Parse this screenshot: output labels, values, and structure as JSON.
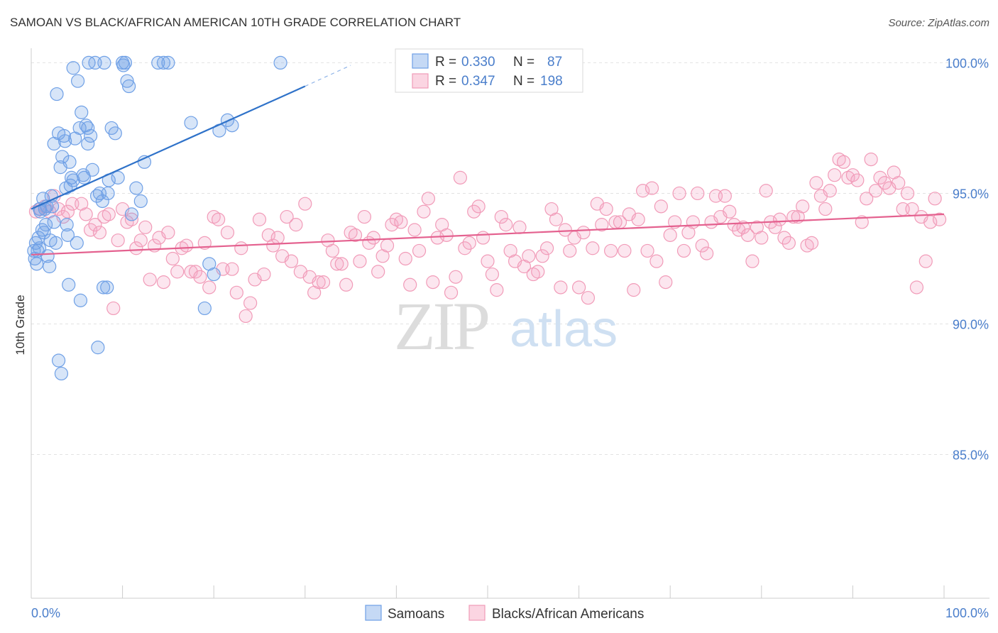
{
  "title": "SAMOAN VS BLACK/AFRICAN AMERICAN 10TH GRADE CORRELATION CHART",
  "source": "Source: ZipAtlas.com",
  "watermark": {
    "zip": "ZIP",
    "atlas": "atlas"
  },
  "legend": {
    "rows": [
      {
        "r_label": "R =",
        "r_value": "0.330",
        "n_label": "N =",
        "n_value": "87"
      },
      {
        "r_label": "R =",
        "r_value": "0.347",
        "n_label": "N =",
        "n_value": "198"
      }
    ]
  },
  "bottom_legend": [
    "Samoans",
    "Blacks/African Americans"
  ],
  "chart_data": {
    "type": "scatter",
    "title": "SAMOAN VS BLACK/AFRICAN AMERICAN 10TH GRADE CORRELATION CHART",
    "xlabel": "",
    "ylabel": "10th Grade",
    "x_tick_labels": [
      "0.0%",
      "100.0%"
    ],
    "y_tick_labels": [
      "100.0%",
      "95.0%",
      "90.0%",
      "85.0%"
    ],
    "y_ticks": [
      100,
      95,
      90,
      85
    ],
    "xlim": [
      0,
      100
    ],
    "ylim": [
      79.5,
      100.5
    ],
    "grid": true,
    "legend_position": "top-center",
    "colors": {
      "samoans": "#6fa0e6",
      "blacks": "#f19bb8",
      "samoans_line": "#2f72c9",
      "blacks_line": "#e4618f",
      "axis_text": "#4a7ecb"
    },
    "series": [
      {
        "name": "Samoans",
        "r": 0.33,
        "n": 87,
        "trend": {
          "x0": 0,
          "y0": 94.4,
          "x1": 30,
          "y1": 99.1,
          "dash_to_x": 35,
          "dash_to_y": 99.9
        },
        "points": [
          [
            0.3,
            92.8
          ],
          [
            0.4,
            92.5
          ],
          [
            0.5,
            93.1
          ],
          [
            0.6,
            92.3
          ],
          [
            0.7,
            92.8
          ],
          [
            0.8,
            93.3
          ],
          [
            0.9,
            92.9
          ],
          [
            1.0,
            94.3
          ],
          [
            1.2,
            93.6
          ],
          [
            1.3,
            94.8
          ],
          [
            1.5,
            94.4
          ],
          [
            1.6,
            93.8
          ],
          [
            1.8,
            92.6
          ],
          [
            2.0,
            92.2
          ],
          [
            2.1,
            93.2
          ],
          [
            2.3,
            94.5
          ],
          [
            2.5,
            93.9
          ],
          [
            2.8,
            98.8
          ],
          [
            3.0,
            97.3
          ],
          [
            3.2,
            96.0
          ],
          [
            3.4,
            96.4
          ],
          [
            3.6,
            97.2
          ],
          [
            3.8,
            95.2
          ],
          [
            4.0,
            93.4
          ],
          [
            4.2,
            96.2
          ],
          [
            4.4,
            95.6
          ],
          [
            4.6,
            95.5
          ],
          [
            4.8,
            97.1
          ],
          [
            5.0,
            93.1
          ],
          [
            4.6,
            99.8
          ],
          [
            5.1,
            99.3
          ],
          [
            5.3,
            97.5
          ],
          [
            5.5,
            98.1
          ],
          [
            5.7,
            95.7
          ],
          [
            6.0,
            97.6
          ],
          [
            6.2,
            96.9
          ],
          [
            6.3,
            100.0
          ],
          [
            6.5,
            97.2
          ],
          [
            6.7,
            95.9
          ],
          [
            7.0,
            100.0
          ],
          [
            7.2,
            94.9
          ],
          [
            7.5,
            95.0
          ],
          [
            7.8,
            94.7
          ],
          [
            8.0,
            100.0
          ],
          [
            8.3,
            91.4
          ],
          [
            8.5,
            95.5
          ],
          [
            8.8,
            97.5
          ],
          [
            9.2,
            97.3
          ],
          [
            9.5,
            95.6
          ],
          [
            10.0,
            100.0
          ],
          [
            10.1,
            99.9
          ],
          [
            10.3,
            100.0
          ],
          [
            10.5,
            99.3
          ],
          [
            10.7,
            99.1
          ],
          [
            11.0,
            94.2
          ],
          [
            11.5,
            95.2
          ],
          [
            12.0,
            94.7
          ],
          [
            12.4,
            96.2
          ],
          [
            13.9,
            100.0
          ],
          [
            14.5,
            100.0
          ],
          [
            15.0,
            100.0
          ],
          [
            17.5,
            97.7
          ],
          [
            19.0,
            90.6
          ],
          [
            19.5,
            92.3
          ],
          [
            20.0,
            91.9
          ],
          [
            20.6,
            97.4
          ],
          [
            21.5,
            97.8
          ],
          [
            22.0,
            97.6
          ],
          [
            27.3,
            100.0
          ],
          [
            3.0,
            88.6
          ],
          [
            3.3,
            88.1
          ],
          [
            7.3,
            89.1
          ],
          [
            4.1,
            91.5
          ],
          [
            5.4,
            90.9
          ],
          [
            7.9,
            91.4
          ],
          [
            1.4,
            93.5
          ],
          [
            2.7,
            93.1
          ],
          [
            3.9,
            93.8
          ],
          [
            2.2,
            94.9
          ],
          [
            1.7,
            94.5
          ],
          [
            0.9,
            94.4
          ],
          [
            5.8,
            95.6
          ],
          [
            3.7,
            97.0
          ],
          [
            2.5,
            96.9
          ],
          [
            6.2,
            97.5
          ],
          [
            8.4,
            95.0
          ],
          [
            4.3,
            95.3
          ]
        ]
      },
      {
        "name": "Blacks/African Americans",
        "r": 0.347,
        "n": 198,
        "trend": {
          "x0": 0,
          "y0": 92.65,
          "x1": 100,
          "y1": 94.2
        },
        "points": [
          [
            0.5,
            94.3
          ],
          [
            1.0,
            94.4
          ],
          [
            1.5,
            94.5
          ],
          [
            2.0,
            94.3
          ],
          [
            2.5,
            94.9
          ],
          [
            3.0,
            94.4
          ],
          [
            3.5,
            94.1
          ],
          [
            4.0,
            94.3
          ],
          [
            4.5,
            94.6
          ],
          [
            5.5,
            94.6
          ],
          [
            6.0,
            94.2
          ],
          [
            6.5,
            93.6
          ],
          [
            7.0,
            93.8
          ],
          [
            7.5,
            93.5
          ],
          [
            8.0,
            94.1
          ],
          [
            8.5,
            94.2
          ],
          [
            9.0,
            90.6
          ],
          [
            9.5,
            93.2
          ],
          [
            10.0,
            94.4
          ],
          [
            10.5,
            93.9
          ],
          [
            11.0,
            94.0
          ],
          [
            11.5,
            92.9
          ],
          [
            12.0,
            93.2
          ],
          [
            12.5,
            93.7
          ],
          [
            13.0,
            91.7
          ],
          [
            13.5,
            93.0
          ],
          [
            14.0,
            93.3
          ],
          [
            14.5,
            91.6
          ],
          [
            15.0,
            93.5
          ],
          [
            15.5,
            92.5
          ],
          [
            16.0,
            92.0
          ],
          [
            16.5,
            92.9
          ],
          [
            17.0,
            93.0
          ],
          [
            17.5,
            92.0
          ],
          [
            18.0,
            92.0
          ],
          [
            18.5,
            91.8
          ],
          [
            19.0,
            93.1
          ],
          [
            19.5,
            91.4
          ],
          [
            20.0,
            94.1
          ],
          [
            20.5,
            94.0
          ],
          [
            21.0,
            92.1
          ],
          [
            21.5,
            93.5
          ],
          [
            22.0,
            92.1
          ],
          [
            22.5,
            91.2
          ],
          [
            23.0,
            92.9
          ],
          [
            23.5,
            90.3
          ],
          [
            24.0,
            90.8
          ],
          [
            24.5,
            91.7
          ],
          [
            25.0,
            94.0
          ],
          [
            25.5,
            91.9
          ],
          [
            26.0,
            93.4
          ],
          [
            26.5,
            93.0
          ],
          [
            27.0,
            93.3
          ],
          [
            27.5,
            92.6
          ],
          [
            28.0,
            94.1
          ],
          [
            28.5,
            92.4
          ],
          [
            29.0,
            93.8
          ],
          [
            29.5,
            92.0
          ],
          [
            30.0,
            94.6
          ],
          [
            30.5,
            91.8
          ],
          [
            31.0,
            91.2
          ],
          [
            31.5,
            91.6
          ],
          [
            32.0,
            91.6
          ],
          [
            32.5,
            93.2
          ],
          [
            33.0,
            92.8
          ],
          [
            33.5,
            92.3
          ],
          [
            34.0,
            92.3
          ],
          [
            34.5,
            91.5
          ],
          [
            35.0,
            93.5
          ],
          [
            35.5,
            93.4
          ],
          [
            36.0,
            92.4
          ],
          [
            36.5,
            94.1
          ],
          [
            37.0,
            93.1
          ],
          [
            37.5,
            93.3
          ],
          [
            38.0,
            92.0
          ],
          [
            38.5,
            92.6
          ],
          [
            39.0,
            93.0
          ],
          [
            39.5,
            93.8
          ],
          [
            40.0,
            94.0
          ],
          [
            40.5,
            93.9
          ],
          [
            41.0,
            92.5
          ],
          [
            41.5,
            91.5
          ],
          [
            42.0,
            93.6
          ],
          [
            42.5,
            92.8
          ],
          [
            43.0,
            94.3
          ],
          [
            43.5,
            94.8
          ],
          [
            44.0,
            91.6
          ],
          [
            44.5,
            93.3
          ],
          [
            45.0,
            93.8
          ],
          [
            45.5,
            93.4
          ],
          [
            46.0,
            91.2
          ],
          [
            46.5,
            91.8
          ],
          [
            47.0,
            95.6
          ],
          [
            47.5,
            92.9
          ],
          [
            48.0,
            93.1
          ],
          [
            48.5,
            94.3
          ],
          [
            49.0,
            94.5
          ],
          [
            49.5,
            93.3
          ],
          [
            50.0,
            92.4
          ],
          [
            50.5,
            91.9
          ],
          [
            51.0,
            91.3
          ],
          [
            51.5,
            94.1
          ],
          [
            52.0,
            93.8
          ],
          [
            52.5,
            92.8
          ],
          [
            53.0,
            92.4
          ],
          [
            53.5,
            93.7
          ],
          [
            54.0,
            92.2
          ],
          [
            54.5,
            92.6
          ],
          [
            55.0,
            91.9
          ],
          [
            55.5,
            92.0
          ],
          [
            56.0,
            92.6
          ],
          [
            56.5,
            92.9
          ],
          [
            57.0,
            94.4
          ],
          [
            57.5,
            94.0
          ],
          [
            58.0,
            91.4
          ],
          [
            58.5,
            93.6
          ],
          [
            59.0,
            92.8
          ],
          [
            59.5,
            93.3
          ],
          [
            60.0,
            91.4
          ],
          [
            60.5,
            93.5
          ],
          [
            61.0,
            91.0
          ],
          [
            61.5,
            92.9
          ],
          [
            62.0,
            94.6
          ],
          [
            62.5,
            93.8
          ],
          [
            63.0,
            94.4
          ],
          [
            63.5,
            92.8
          ],
          [
            64.0,
            93.9
          ],
          [
            64.5,
            93.9
          ],
          [
            65.0,
            92.8
          ],
          [
            65.5,
            94.2
          ],
          [
            66.0,
            91.3
          ],
          [
            66.5,
            94.0
          ],
          [
            67.0,
            95.1
          ],
          [
            67.5,
            92.8
          ],
          [
            68.0,
            95.2
          ],
          [
            68.5,
            92.4
          ],
          [
            69.0,
            94.5
          ],
          [
            69.5,
            91.6
          ],
          [
            70.0,
            93.4
          ],
          [
            70.5,
            93.9
          ],
          [
            71.0,
            95.0
          ],
          [
            71.5,
            92.8
          ],
          [
            72.0,
            93.5
          ],
          [
            72.5,
            93.9
          ],
          [
            73.0,
            95.0
          ],
          [
            73.5,
            93.0
          ],
          [
            74.0,
            92.7
          ],
          [
            74.5,
            93.9
          ],
          [
            75.0,
            94.9
          ],
          [
            75.5,
            94.1
          ],
          [
            76.0,
            94.9
          ],
          [
            76.5,
            94.3
          ],
          [
            77.0,
            93.8
          ],
          [
            77.5,
            93.6
          ],
          [
            78.0,
            93.7
          ],
          [
            78.5,
            93.4
          ],
          [
            79.0,
            92.4
          ],
          [
            79.5,
            93.7
          ],
          [
            80.0,
            93.3
          ],
          [
            80.5,
            95.1
          ],
          [
            81.0,
            93.9
          ],
          [
            81.5,
            93.7
          ],
          [
            82.0,
            94.0
          ],
          [
            82.5,
            93.3
          ],
          [
            83.0,
            93.1
          ],
          [
            83.5,
            94.1
          ],
          [
            84.0,
            94.1
          ],
          [
            84.5,
            94.5
          ],
          [
            85.0,
            93.0
          ],
          [
            85.5,
            93.1
          ],
          [
            86.0,
            95.4
          ],
          [
            86.5,
            94.9
          ],
          [
            87.0,
            94.4
          ],
          [
            87.5,
            95.1
          ],
          [
            88.0,
            95.7
          ],
          [
            88.5,
            96.3
          ],
          [
            89.0,
            96.2
          ],
          [
            89.5,
            95.6
          ],
          [
            90.0,
            95.7
          ],
          [
            90.5,
            95.5
          ],
          [
            91.0,
            93.9
          ],
          [
            91.5,
            94.8
          ],
          [
            92.0,
            96.3
          ],
          [
            92.5,
            95.1
          ],
          [
            93.0,
            95.6
          ],
          [
            93.5,
            95.4
          ],
          [
            94.0,
            95.2
          ],
          [
            94.5,
            95.8
          ],
          [
            95.0,
            95.4
          ],
          [
            95.5,
            94.4
          ],
          [
            96.0,
            95.0
          ],
          [
            96.5,
            94.4
          ],
          [
            97.0,
            91.4
          ],
          [
            97.5,
            94.1
          ],
          [
            98.0,
            92.4
          ],
          [
            98.5,
            93.9
          ],
          [
            99.0,
            94.8
          ],
          [
            99.5,
            94.0
          ]
        ]
      }
    ]
  }
}
